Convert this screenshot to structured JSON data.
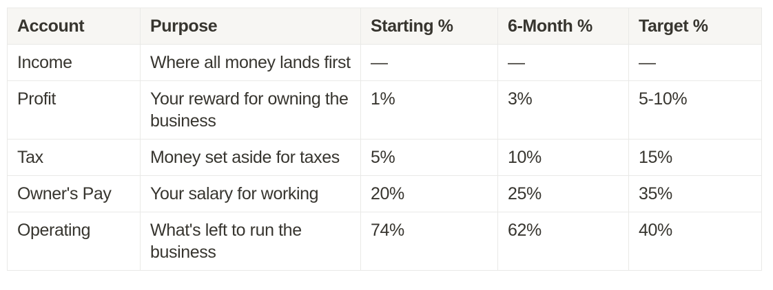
{
  "colors": {
    "page_background": "#ffffff",
    "header_background": "#f7f6f3",
    "border": "#e9e9e7",
    "text": "#37352f"
  },
  "table": {
    "columns": [
      "Account",
      "Purpose",
      "Starting %",
      "6-Month %",
      "Target %"
    ],
    "rows": [
      {
        "account": "Income",
        "purpose": "Where all money lands first",
        "starting": "—",
        "six_month": "—",
        "target": "—"
      },
      {
        "account": "Profit",
        "purpose": "Your reward for owning the business",
        "starting": "1%",
        "six_month": "3%",
        "target": "5-10%"
      },
      {
        "account": "Tax",
        "purpose": "Money set aside for taxes",
        "starting": "5%",
        "six_month": "10%",
        "target": "15%"
      },
      {
        "account": "Owner's Pay",
        "purpose": "Your salary for working",
        "starting": "20%",
        "six_month": "25%",
        "target": "35%"
      },
      {
        "account": "Operating",
        "purpose": "What's left to run the business",
        "starting": "74%",
        "six_month": "62%",
        "target": "40%"
      }
    ]
  }
}
